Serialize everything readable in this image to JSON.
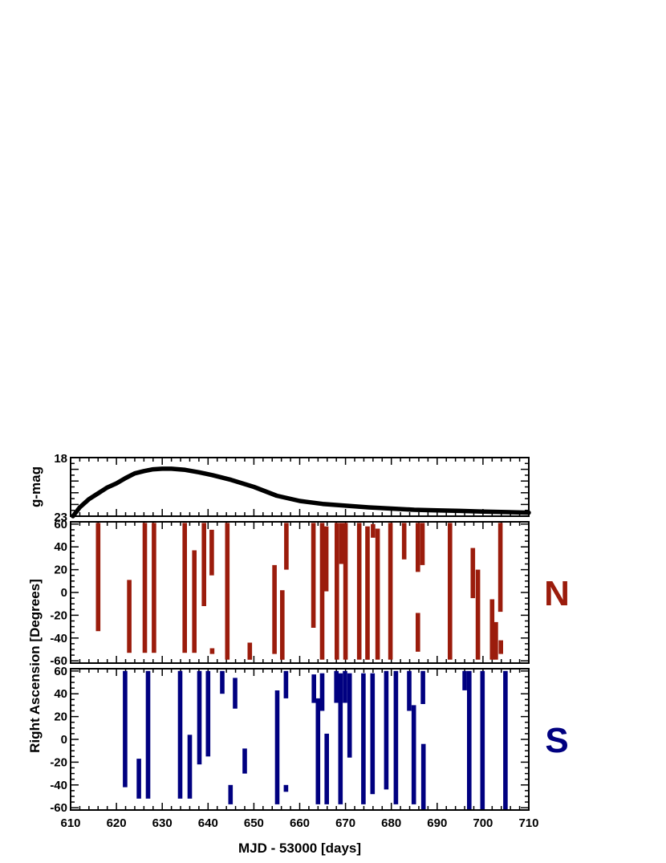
{
  "colors": {
    "north": "#9b1c0c",
    "south": "#000080",
    "curve": "#000000",
    "frame": "#000000"
  },
  "chart_data": [
    {
      "type": "line",
      "panel": "light-curve",
      "title": "",
      "ylabel": "g-mag",
      "xlabel": "",
      "xlim": [
        610,
        710
      ],
      "ylim": [
        23,
        18
      ],
      "yticks": [
        "18",
        "23"
      ],
      "grid": false,
      "series": [
        {
          "x": [
            610.5,
            612,
            614,
            616,
            618,
            620,
            622,
            624,
            626,
            628,
            630,
            632,
            635,
            638,
            641,
            645,
            650,
            655,
            660,
            665,
            670,
            675,
            680,
            685,
            690,
            695,
            700,
            705,
            710
          ],
          "y": [
            23.0,
            22.25,
            21.55,
            21.05,
            20.55,
            20.2,
            19.75,
            19.35,
            19.15,
            19.0,
            18.95,
            18.95,
            19.05,
            19.25,
            19.5,
            19.9,
            20.5,
            21.25,
            21.7,
            21.95,
            22.1,
            22.25,
            22.35,
            22.45,
            22.5,
            22.55,
            22.6,
            22.65,
            22.7
          ]
        }
      ]
    },
    {
      "type": "bar",
      "panel": "north",
      "label": "N",
      "title": "",
      "ylabel": "Right Ascension [Degrees]",
      "xlabel": "",
      "xlim": [
        610,
        710
      ],
      "ylim": [
        -62,
        62
      ],
      "yticks": [
        "60",
        "40",
        "20",
        "0",
        "-20",
        "-40",
        "-60"
      ],
      "grid": false,
      "segments": [
        {
          "x": 616,
          "y0": -34,
          "y1": 61
        },
        {
          "x": 622.8,
          "y0": -53,
          "y1": 11
        },
        {
          "x": 626.2,
          "y0": -53,
          "y1": 61
        },
        {
          "x": 628.2,
          "y0": -53,
          "y1": 61
        },
        {
          "x": 634.9,
          "y0": -53,
          "y1": 61
        },
        {
          "x": 637.0,
          "y0": -53,
          "y1": 37
        },
        {
          "x": 639.1,
          "y0": -12,
          "y1": 61
        },
        {
          "x": 640.8,
          "y0": 15,
          "y1": 55
        },
        {
          "x": 640.9,
          "y0": -54,
          "y1": -49
        },
        {
          "x": 644.2,
          "y0": -59,
          "y1": 61
        },
        {
          "x": 649.1,
          "y0": -59,
          "y1": -44
        },
        {
          "x": 654.5,
          "y0": -54,
          "y1": 24
        },
        {
          "x": 656.2,
          "y0": -59,
          "y1": 2
        },
        {
          "x": 657.1,
          "y0": 20,
          "y1": 61
        },
        {
          "x": 663.0,
          "y0": -31,
          "y1": 61
        },
        {
          "x": 664.9,
          "y0": -59,
          "y1": 61
        },
        {
          "x": 665.8,
          "y0": 1,
          "y1": 58
        },
        {
          "x": 668.1,
          "y0": -59,
          "y1": 61
        },
        {
          "x": 669.1,
          "y0": 25,
          "y1": 61
        },
        {
          "x": 670.0,
          "y0": -59,
          "y1": 61
        },
        {
          "x": 673.0,
          "y0": -59,
          "y1": 61
        },
        {
          "x": 674.8,
          "y0": -59,
          "y1": 58
        },
        {
          "x": 676.0,
          "y0": 48,
          "y1": 60
        },
        {
          "x": 677.0,
          "y0": -59,
          "y1": 56
        },
        {
          "x": 679.8,
          "y0": -59,
          "y1": 61
        },
        {
          "x": 682.8,
          "y0": 29,
          "y1": 61
        },
        {
          "x": 685.8,
          "y0": 18,
          "y1": 61
        },
        {
          "x": 685.8,
          "y0": -52,
          "y1": -18
        },
        {
          "x": 686.8,
          "y0": 24,
          "y1": 61
        },
        {
          "x": 692.8,
          "y0": -59,
          "y1": 61
        },
        {
          "x": 697.8,
          "y0": -5,
          "y1": 39
        },
        {
          "x": 698.9,
          "y0": -59,
          "y1": 20
        },
        {
          "x": 702.0,
          "y0": -59,
          "y1": -6
        },
        {
          "x": 702.8,
          "y0": -59,
          "y1": -26
        },
        {
          "x": 703.8,
          "y0": -17,
          "y1": 61
        },
        {
          "x": 703.9,
          "y0": -54,
          "y1": -42
        }
      ]
    },
    {
      "type": "bar",
      "panel": "south",
      "label": "S",
      "title": "",
      "ylabel": "",
      "xlabel": "MJD - 53000 [days]",
      "xlim": [
        610,
        710
      ],
      "ylim": [
        -62,
        62
      ],
      "xticks": [
        "610",
        "620",
        "630",
        "640",
        "650",
        "660",
        "670",
        "680",
        "690",
        "700",
        "710"
      ],
      "yticks": [
        "60",
        "40",
        "20",
        "0",
        "-20",
        "-40",
        "-60"
      ],
      "grid": false,
      "segments": [
        {
          "x": 621.9,
          "y0": -42,
          "y1": 60
        },
        {
          "x": 624.9,
          "y0": -52,
          "y1": -17
        },
        {
          "x": 626.9,
          "y0": -52,
          "y1": 60
        },
        {
          "x": 633.9,
          "y0": -52,
          "y1": 60
        },
        {
          "x": 636.0,
          "y0": -52,
          "y1": 4
        },
        {
          "x": 638.1,
          "y0": -22,
          "y1": 60
        },
        {
          "x": 640.0,
          "y0": -15,
          "y1": 60
        },
        {
          "x": 643.1,
          "y0": 40,
          "y1": 60
        },
        {
          "x": 644.9,
          "y0": -57,
          "y1": -40
        },
        {
          "x": 645.9,
          "y0": 27,
          "y1": 54
        },
        {
          "x": 648.0,
          "y0": -30,
          "y1": -8
        },
        {
          "x": 655.1,
          "y0": -57,
          "y1": 43
        },
        {
          "x": 657.0,
          "y0": 36,
          "y1": 60
        },
        {
          "x": 657.0,
          "y0": -46,
          "y1": -40
        },
        {
          "x": 663.1,
          "y0": 32,
          "y1": 57
        },
        {
          "x": 664.0,
          "y0": -57,
          "y1": 36
        },
        {
          "x": 664.9,
          "y0": 25,
          "y1": 58
        },
        {
          "x": 665.9,
          "y0": -57,
          "y1": 5
        },
        {
          "x": 668.0,
          "y0": 32,
          "y1": 60
        },
        {
          "x": 668.9,
          "y0": -57,
          "y1": 58
        },
        {
          "x": 669.9,
          "y0": 32,
          "y1": 60
        },
        {
          "x": 670.9,
          "y0": -16,
          "y1": 58
        },
        {
          "x": 673.9,
          "y0": -57,
          "y1": 58
        },
        {
          "x": 675.9,
          "y0": -48,
          "y1": 58
        },
        {
          "x": 678.9,
          "y0": -44,
          "y1": 60
        },
        {
          "x": 681.0,
          "y0": -57,
          "y1": 60
        },
        {
          "x": 683.9,
          "y0": 25,
          "y1": 60
        },
        {
          "x": 684.9,
          "y0": -57,
          "y1": 30
        },
        {
          "x": 686.9,
          "y0": 31,
          "y1": 60
        },
        {
          "x": 687.0,
          "y0": -62,
          "y1": -4
        },
        {
          "x": 696.0,
          "y0": 43,
          "y1": 60
        },
        {
          "x": 697.0,
          "y0": -62,
          "y1": 60
        },
        {
          "x": 699.9,
          "y0": -62,
          "y1": 60
        },
        {
          "x": 704.9,
          "y0": -62,
          "y1": 60
        }
      ]
    }
  ]
}
